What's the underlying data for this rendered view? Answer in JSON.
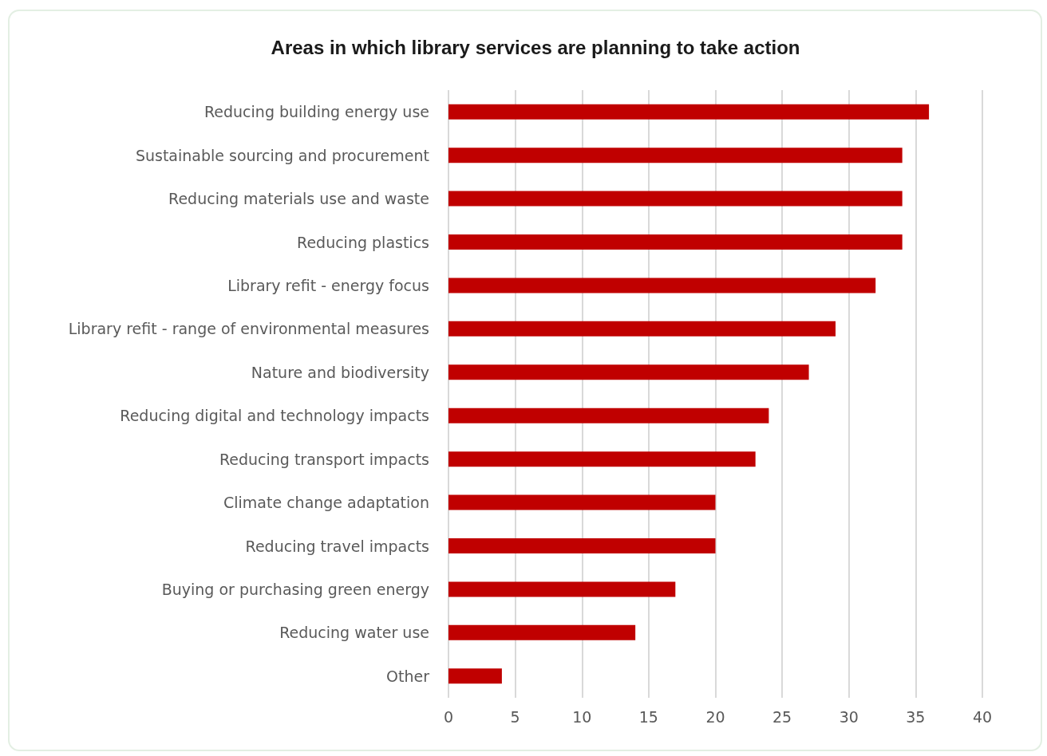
{
  "chart_data": {
    "type": "bar",
    "orientation": "horizontal",
    "title": "Areas in which library services are planning to take action",
    "categories": [
      "Reducing building energy use",
      "Sustainable sourcing and procurement",
      "Reducing materials use and waste",
      "Reducing plastics",
      "Library refit - energy focus",
      "Library refit - range of environmental measures",
      "Nature and biodiversity",
      "Reducing digital and technology impacts",
      "Reducing transport impacts",
      "Climate change adaptation",
      "Reducing travel impacts",
      "Buying or purchasing green energy",
      "Reducing water use",
      "Other"
    ],
    "values": [
      36,
      34,
      34,
      34,
      32,
      29,
      27,
      24,
      23,
      20,
      20,
      17,
      14,
      4
    ],
    "color": "#c00000",
    "xlim": [
      0,
      40
    ],
    "xticks": [
      0,
      5,
      10,
      15,
      20,
      25,
      30,
      35,
      40
    ],
    "grid": "x"
  }
}
